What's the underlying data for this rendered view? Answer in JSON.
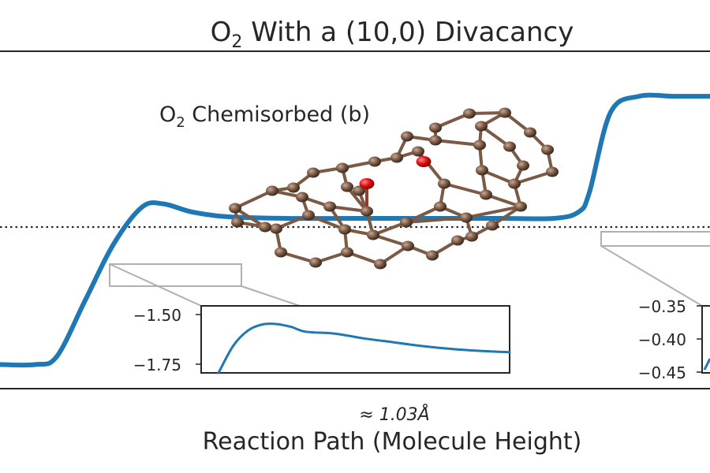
{
  "chart_data": {
    "type": "line",
    "title_main": "O",
    "title_sub": "2",
    "title_rest": " With a (10,0) Divacancy",
    "xlabel": "Reaction Path (Molecule Height)",
    "x_annotation": "≈ 1.03Å",
    "structure_label_main": "O",
    "structure_label_sub": "2",
    "structure_label_rest": " Chemisorbed (b)",
    "series_color": "#1f77b4",
    "reference_line": "dotted horizontal reference level",
    "main_curve": {
      "x": [
        0,
        0.05,
        0.08,
        0.12,
        0.16,
        0.2,
        0.23,
        0.27,
        0.32,
        0.4,
        0.5,
        0.6,
        0.7,
        0.78,
        0.815,
        0.83,
        0.86,
        0.9,
        0.95,
        1.0
      ],
      "y": [
        -2.55,
        -2.55,
        -2.5,
        -2.15,
        -1.8,
        -1.57,
        -1.55,
        -1.6,
        -1.63,
        -1.64,
        -1.64,
        -1.64,
        -1.64,
        -1.64,
        -1.6,
        -1.48,
        -0.98,
        -0.88,
        -0.88,
        -0.88
      ]
    },
    "inset_left": {
      "yticks": [
        "−1.50",
        "−1.75"
      ],
      "ytick_values": [
        -1.5,
        -1.75
      ],
      "ylim": [
        -1.78,
        -1.43
      ],
      "x": [
        0,
        0.05,
        0.1,
        0.15,
        0.2,
        0.25,
        0.3,
        0.4,
        0.5,
        0.6,
        0.7,
        0.8,
        0.9,
        1.0
      ],
      "y": [
        -1.78,
        -1.64,
        -1.56,
        -1.527,
        -1.525,
        -1.54,
        -1.565,
        -1.575,
        -1.6,
        -1.62,
        -1.64,
        -1.655,
        -1.665,
        -1.672
      ]
    },
    "inset_right": {
      "yticks": [
        "−0.35",
        "−0.40",
        "−0.45"
      ],
      "ytick_values": [
        -0.35,
        -0.4,
        -0.45
      ],
      "ylim": [
        -0.46,
        -0.34
      ]
    }
  }
}
